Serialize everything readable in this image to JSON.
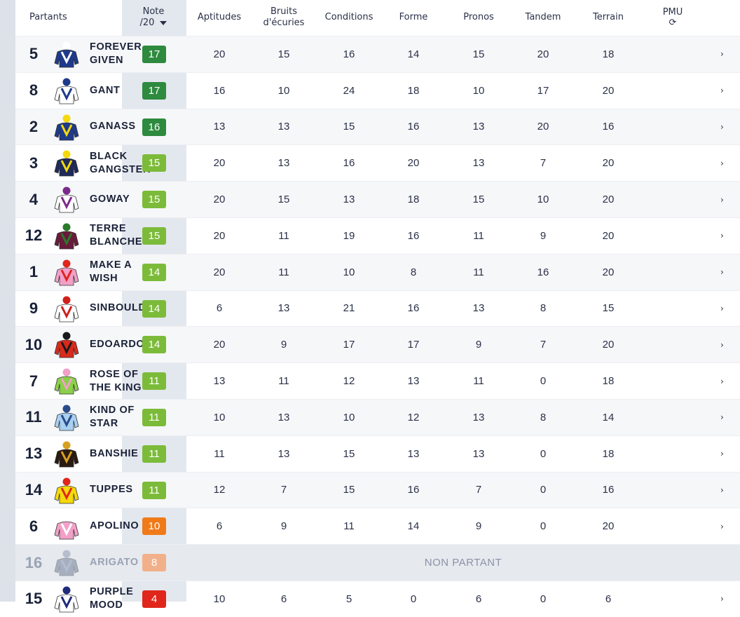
{
  "header": {
    "partants": "Partants",
    "note_line1": "Note",
    "note_line2": "/20",
    "aptitudes": "Aptitudes",
    "bruits_line1": "Bruits",
    "bruits_line2": "d'écuries",
    "conditions": "Conditions",
    "forme": "Forme",
    "pronos": "Pronos",
    "tandem": "Tandem",
    "terrain": "Terrain",
    "pmu": "PMU",
    "refresh_icon": "⟳"
  },
  "colors": {
    "dark_green": "#2e8a3e",
    "light_green": "#7cbb3a",
    "orange": "#f07a1a",
    "peach": "#f2b08a",
    "red": "#e0261b"
  },
  "rows": [
    {
      "num": "5",
      "name": "FOREVER GIVEN",
      "note": "17",
      "badge": "#2e8a3e",
      "silk": [
        "#1e3a8a",
        "#ffffff"
      ],
      "stats": [
        "20",
        "15",
        "16",
        "14",
        "15",
        "20",
        "18"
      ],
      "arrow": "›"
    },
    {
      "num": "8",
      "name": "GANT",
      "note": "17",
      "badge": "#2e8a3e",
      "silk": [
        "#ffffff",
        "#1e3a8a"
      ],
      "stats": [
        "16",
        "10",
        "24",
        "18",
        "10",
        "17",
        "20"
      ],
      "arrow": "›"
    },
    {
      "num": "2",
      "name": "GANASS",
      "note": "16",
      "badge": "#2e8a3e",
      "silk": [
        "#1e3a8a",
        "#f5d90a"
      ],
      "stats": [
        "13",
        "13",
        "15",
        "16",
        "13",
        "20",
        "16"
      ],
      "arrow": "›"
    },
    {
      "num": "3",
      "name": "BLACK GANGSTER",
      "note": "15",
      "badge": "#7cbb3a",
      "silk": [
        "#1e2a5a",
        "#f5d90a"
      ],
      "stats": [
        "20",
        "13",
        "16",
        "20",
        "13",
        "7",
        "20"
      ],
      "arrow": "›"
    },
    {
      "num": "4",
      "name": "GOWAY",
      "note": "15",
      "badge": "#7cbb3a",
      "silk": [
        "#ffffff",
        "#7a2a8a"
      ],
      "stats": [
        "20",
        "15",
        "13",
        "18",
        "15",
        "10",
        "20"
      ],
      "arrow": "›"
    },
    {
      "num": "12",
      "name": "TERRE BLANCHE",
      "note": "15",
      "badge": "#7cbb3a",
      "silk": [
        "#6a1a3a",
        "#2a7a2a"
      ],
      "stats": [
        "20",
        "11",
        "19",
        "16",
        "11",
        "9",
        "20"
      ],
      "arrow": "›"
    },
    {
      "num": "1",
      "name": "MAKE A WISH",
      "note": "14",
      "badge": "#7cbb3a",
      "silk": [
        "#f2a0c8",
        "#e0261b"
      ],
      "stats": [
        "20",
        "11",
        "10",
        "8",
        "11",
        "16",
        "20"
      ],
      "arrow": "›"
    },
    {
      "num": "9",
      "name": "SINBOULD",
      "note": "14",
      "badge": "#7cbb3a",
      "silk": [
        "#ffffff",
        "#d0201b"
      ],
      "stats": [
        "6",
        "13",
        "21",
        "16",
        "13",
        "8",
        "15"
      ],
      "arrow": "›"
    },
    {
      "num": "10",
      "name": "EDOARDO",
      "note": "14",
      "badge": "#7cbb3a",
      "silk": [
        "#d82a1a",
        "#1a1a1a"
      ],
      "stats": [
        "20",
        "9",
        "17",
        "17",
        "9",
        "7",
        "20"
      ],
      "arrow": "›"
    },
    {
      "num": "7",
      "name": "ROSE OF THE KING",
      "note": "11",
      "badge": "#7cbb3a",
      "silk": [
        "#8ad04a",
        "#f2a0c8"
      ],
      "stats": [
        "13",
        "11",
        "12",
        "13",
        "11",
        "0",
        "18"
      ],
      "arrow": "›"
    },
    {
      "num": "11",
      "name": "KIND OF STAR",
      "note": "11",
      "badge": "#7cbb3a",
      "silk": [
        "#a8d0f0",
        "#2a4a8a"
      ],
      "stats": [
        "10",
        "13",
        "10",
        "12",
        "13",
        "8",
        "14"
      ],
      "arrow": "›"
    },
    {
      "num": "13",
      "name": "BANSHIE",
      "note": "11",
      "badge": "#7cbb3a",
      "silk": [
        "#2a1a10",
        "#d8a020"
      ],
      "stats": [
        "11",
        "13",
        "15",
        "13",
        "13",
        "0",
        "18"
      ],
      "arrow": "›"
    },
    {
      "num": "14",
      "name": "TUPPES",
      "note": "11",
      "badge": "#7cbb3a",
      "silk": [
        "#f5d90a",
        "#e0261b"
      ],
      "stats": [
        "12",
        "7",
        "15",
        "16",
        "7",
        "0",
        "16"
      ],
      "arrow": "›"
    },
    {
      "num": "6",
      "name": "APOLINO",
      "note": "10",
      "badge": "#f07a1a",
      "silk": [
        "#f2a0c8",
        "#ffffff"
      ],
      "stats": [
        "6",
        "9",
        "11",
        "14",
        "9",
        "0",
        "20"
      ],
      "arrow": "›"
    },
    {
      "num": "16",
      "name": "ARIGATO",
      "note": "8",
      "badge": "#f2b08a",
      "silk": [
        "#5a6a8a",
        "#7a8aa8"
      ],
      "stats": [],
      "non_partant": "NON PARTANT",
      "arrow": ""
    },
    {
      "num": "15",
      "name": "PURPLE MOOD",
      "note": "4",
      "badge": "#e0261b",
      "silk": [
        "#ffffff",
        "#1e2a7a"
      ],
      "stats": [
        "10",
        "6",
        "5",
        "0",
        "6",
        "0",
        "6"
      ],
      "arrow": "›"
    }
  ]
}
